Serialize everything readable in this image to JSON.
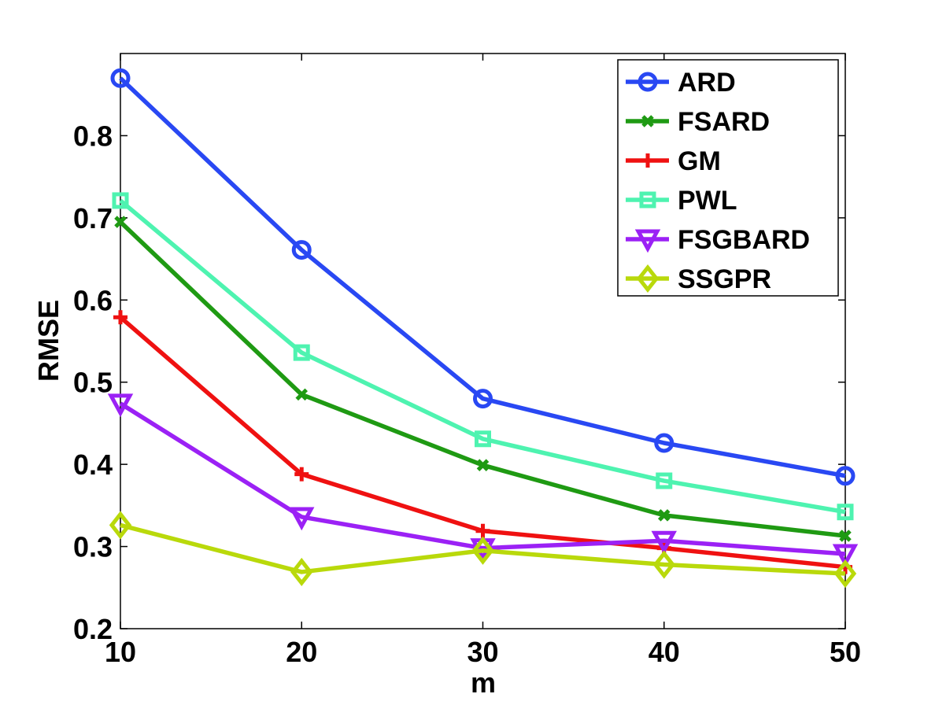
{
  "chart_data": {
    "type": "line",
    "title": "",
    "xlabel": "m",
    "ylabel": "RMSE",
    "x": [
      10,
      20,
      30,
      40,
      50
    ],
    "xlim": [
      10,
      50
    ],
    "ylim": [
      0.2,
      0.9
    ],
    "xticks": [
      "10",
      "20",
      "30",
      "40",
      "50"
    ],
    "yticks": [
      "0.2",
      "0.3",
      "0.4",
      "0.5",
      "0.6",
      "0.7",
      "0.8"
    ],
    "grid": false,
    "legend_position": "top-right",
    "series": [
      {
        "name": "ARD",
        "marker": "circle",
        "color": "#2948f3",
        "values": [
          0.87,
          0.661,
          0.48,
          0.426,
          0.386
        ]
      },
      {
        "name": "FSARD",
        "marker": "x",
        "color": "#1f9a13",
        "values": [
          0.695,
          0.485,
          0.399,
          0.338,
          0.313
        ]
      },
      {
        "name": "GM",
        "marker": "plus",
        "color": "#ef1111",
        "values": [
          0.579,
          0.388,
          0.319,
          0.298,
          0.275
        ]
      },
      {
        "name": "PWL",
        "marker": "square",
        "color": "#4ef3b0",
        "values": [
          0.721,
          0.536,
          0.431,
          0.38,
          0.342
        ]
      },
      {
        "name": "FSGBARD",
        "marker": "triangle-down",
        "color": "#9b21f5",
        "values": [
          0.474,
          0.336,
          0.298,
          0.307,
          0.291
        ]
      },
      {
        "name": "SSGPR",
        "marker": "diamond",
        "color": "#b9d90b",
        "values": [
          0.326,
          0.269,
          0.295,
          0.278,
          0.267
        ]
      }
    ]
  }
}
